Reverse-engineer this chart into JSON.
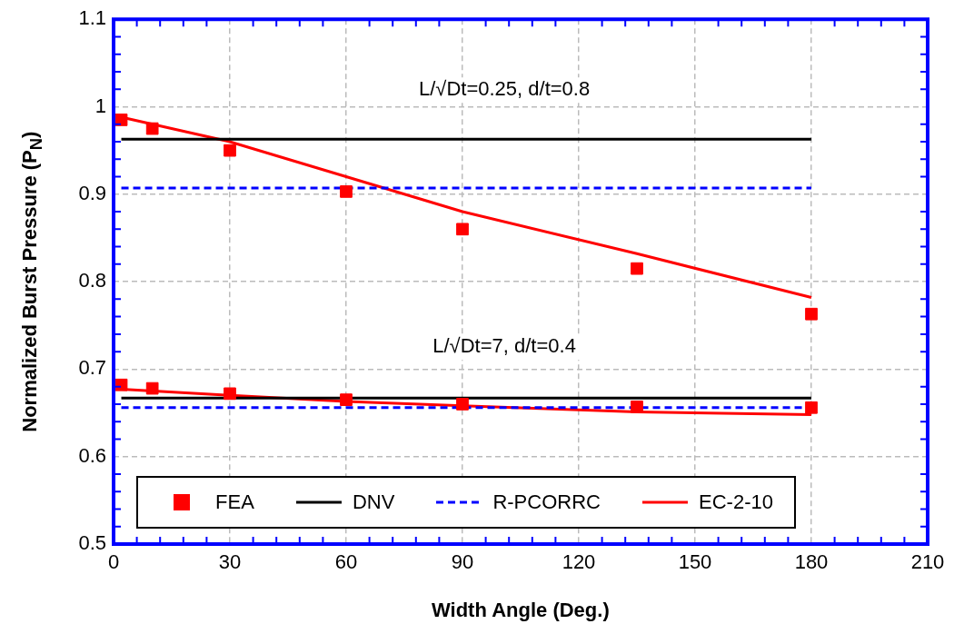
{
  "chart_data": {
    "type": "line",
    "xlabel": "Width Angle (Deg.)",
    "ylabel": "Normalized Burst Pressure (P$_{N}$)",
    "xlim": [
      0,
      210
    ],
    "xticks": [
      0,
      30,
      60,
      90,
      120,
      150,
      180,
      210
    ],
    "ylim": [
      0.5,
      1.1
    ],
    "yticks": [
      0.5,
      0.6,
      0.7,
      0.8,
      0.9,
      1,
      1.1
    ],
    "grid": true,
    "legend": "bottom",
    "series": [
      {
        "name": "FEA",
        "type": "scatter",
        "marker": "square",
        "color": "#ff0000",
        "x": [
          2,
          10,
          30,
          60,
          90,
          135,
          180
        ],
        "values": [
          0.985,
          0.975,
          0.95,
          0.903,
          0.86,
          0.815,
          0.763
        ]
      },
      {
        "type": "scatter",
        "marker": "square",
        "color": "#ff0000",
        "x": [
          2,
          10,
          30,
          60,
          90,
          135,
          180
        ],
        "values": [
          0.682,
          0.678,
          0.672,
          0.665,
          0.66,
          0.657,
          0.656
        ]
      },
      {
        "name": "DNV",
        "line_style": "solid",
        "color": "#000000",
        "x": [
          2,
          180
        ],
        "values": [
          0.963,
          0.963
        ]
      },
      {
        "line_style": "solid",
        "color": "#000000",
        "x": [
          2,
          180
        ],
        "values": [
          0.667,
          0.667
        ]
      },
      {
        "name": "R-PCORRC",
        "line_style": "dashed",
        "color": "#0000ff",
        "x": [
          2,
          180
        ],
        "values": [
          0.907,
          0.907
        ]
      },
      {
        "line_style": "dashed",
        "color": "#0000ff",
        "x": [
          2,
          180
        ],
        "values": [
          0.656,
          0.656
        ]
      },
      {
        "name": "EC-2-10",
        "line_style": "solid",
        "color": "#ff0000",
        "x": [
          2,
          30,
          60,
          90,
          135,
          180
        ],
        "values": [
          0.988,
          0.96,
          0.92,
          0.88,
          0.832,
          0.782
        ]
      },
      {
        "line_style": "solid",
        "color": "#ff0000",
        "x": [
          2,
          30,
          60,
          90,
          135,
          180
        ],
        "values": [
          0.677,
          0.67,
          0.663,
          0.658,
          0.651,
          0.648
        ]
      }
    ],
    "annotations": [
      "L/√Dt=0.25, d/t=0.8",
      "L/√Dt=7, d/t=0.4"
    ]
  }
}
